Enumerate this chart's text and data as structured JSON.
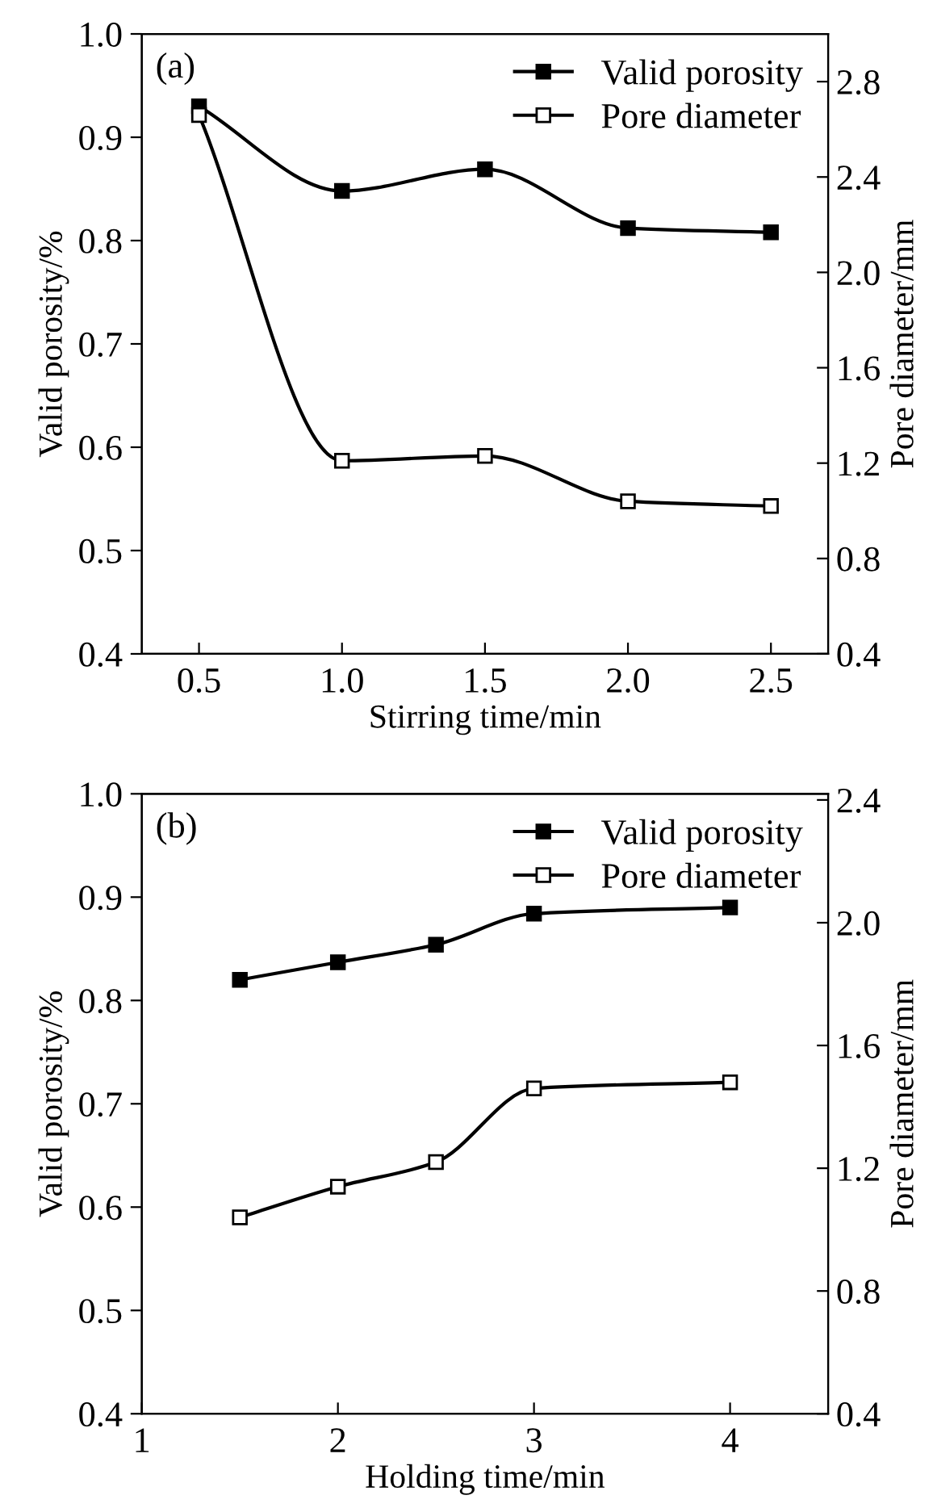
{
  "chart_data": [
    {
      "type": "line",
      "xlabel": "Stirring time/min",
      "ylabel": "Valid porosity/%",
      "y2label": "Pore diameter/mm",
      "annotations": [
        "(a)"
      ],
      "x": [
        0.5,
        1.0,
        1.5,
        2.0,
        2.5
      ],
      "series": [
        {
          "name": "Valid porosity",
          "color": "#000000",
          "values": [
            0.93,
            0.848,
            0.869,
            0.812,
            0.808
          ]
        },
        {
          "name": "Pore diameter",
          "color": "#000000",
          "axis": "y2",
          "values": [
            2.66,
            1.21,
            1.23,
            1.04,
            1.02
          ]
        }
      ],
      "xlim": [
        0.3,
        2.7
      ],
      "xticks": [
        0.5,
        {
          "value": 1,
          "label": "1.0"
        },
        1.5,
        {
          "value": 2,
          "label": "2.0"
        },
        2.5
      ],
      "ylim": [
        0.4,
        1.0
      ],
      "yticks": [
        0.4,
        0.5,
        0.6,
        0.7,
        0.8,
        0.9,
        {
          "value": 1,
          "label": "1.0"
        }
      ],
      "y2lim": [
        0.4,
        3.0
      ],
      "y2ticks": [
        0.4,
        0.8,
        1.2,
        1.6,
        {
          "value": 2,
          "label": "2.0"
        },
        2.4,
        2.8
      ],
      "marker": "square",
      "legend": "top right",
      "grid": false
    },
    {
      "type": "line",
      "xlabel": "Holding time/min",
      "ylabel": "Valid porosity/%",
      "y2label": "Pore diameter/mm",
      "annotations": [
        "(b)"
      ],
      "x": [
        1.5,
        2,
        2.5,
        3,
        4
      ],
      "series": [
        {
          "name": "Valid porosity",
          "color": "#000000",
          "values": [
            0.82,
            0.837,
            0.854,
            0.884,
            0.89
          ]
        },
        {
          "name": "Pore diameter",
          "color": "#000000",
          "axis": "y2",
          "values": [
            1.04,
            1.14,
            1.22,
            1.46,
            1.48
          ]
        }
      ],
      "xlim": [
        1,
        4.5
      ],
      "xticks": [
        1,
        2,
        3,
        4
      ],
      "ylim": [
        0.4,
        1.0
      ],
      "yticks": [
        0.4,
        0.5,
        0.6,
        0.7,
        0.8,
        0.9,
        {
          "value": 1,
          "label": "1.0"
        }
      ],
      "y2lim": [
        0.4,
        2.42
      ],
      "y2ticks": [
        0.4,
        0.8,
        1.2,
        1.6,
        {
          "value": 2,
          "label": "2.0"
        },
        2.4
      ],
      "marker": "square",
      "legend": "top right",
      "grid": false
    }
  ]
}
